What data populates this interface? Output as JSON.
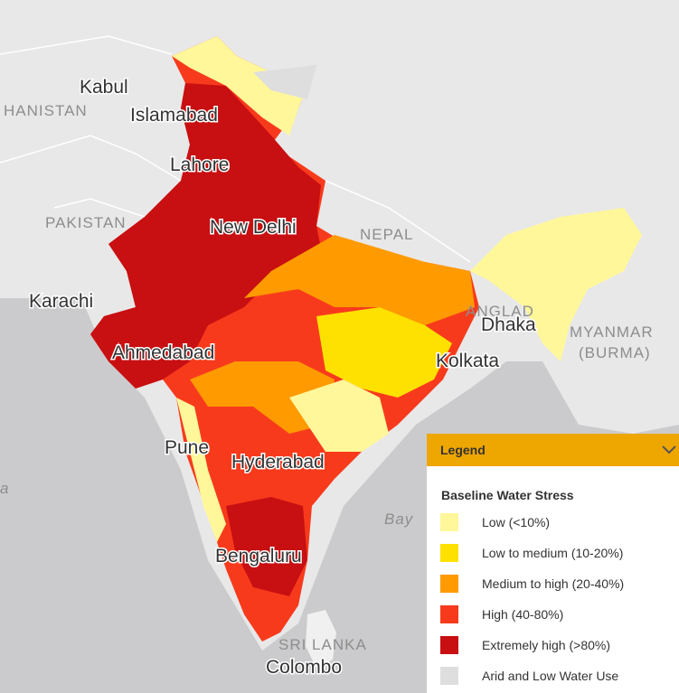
{
  "map": {
    "labels": [
      "Kabul",
      "HANISTAN",
      "Islamabad",
      "Lahore",
      "PAKISTAN",
      "New Delhi",
      "NEPAL",
      "Karachi",
      "Ahmedabad",
      "ANGLAD",
      "Dhaka",
      "MYANMAR",
      "(BURMA)",
      "Kolkata",
      "Pune",
      "Hyderabad",
      "Bay",
      "Bengaluru",
      "SRI LANKA",
      "Colombo",
      "a"
    ]
  },
  "legend": {
    "header": "Legend",
    "title": "Baseline Water Stress",
    "items": [
      {
        "label": "Low (<10%)",
        "color": "#fff79a"
      },
      {
        "label": "Low to medium (10-20%)",
        "color": "#ffe100"
      },
      {
        "label": "Medium to high (20-40%)",
        "color": "#ff9a00"
      },
      {
        "label": "High (40-80%)",
        "color": "#f83a1c"
      },
      {
        "label": "Extremely high (>80%)",
        "color": "#c80f12"
      },
      {
        "label": "Arid and Low Water Use",
        "color": "#dedede"
      }
    ]
  }
}
